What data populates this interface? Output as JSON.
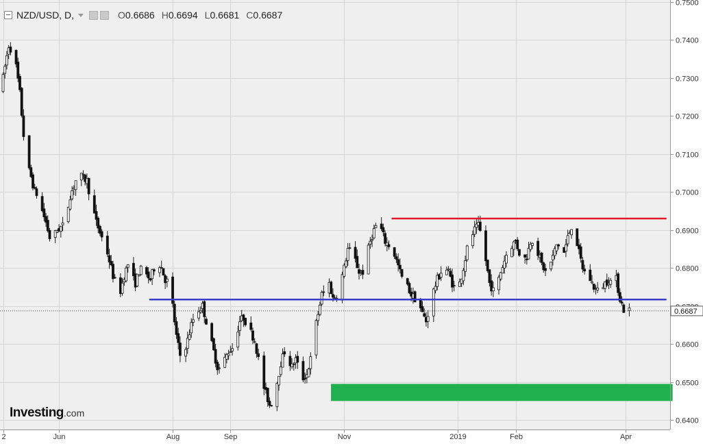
{
  "header": {
    "symbol": "NZD/USD, D,",
    "open_label": "O",
    "open": "0.6686",
    "high_label": "H",
    "high": "0.6694",
    "low_label": "L",
    "low": "0.6681",
    "close_label": "C",
    "close": "0.6687"
  },
  "logo": {
    "main": "Investing",
    "suffix": ".com"
  },
  "chart_data": {
    "type": "candlestick",
    "title": "NZD/USD, D,",
    "ylim": [
      0.6375,
      0.7505
    ],
    "y_ticks": [
      "0.6400",
      "0.6500",
      "0.6600",
      "0.6700",
      "0.6800",
      "0.6900",
      "0.7000",
      "0.7100",
      "0.7200",
      "0.7300",
      "0.7400",
      "0.7500"
    ],
    "x_ticks": [
      {
        "label": "2",
        "day": 0.6
      },
      {
        "label": "Jun",
        "day": 30.6
      },
      {
        "label": "Aug",
        "day": 91.6
      },
      {
        "label": "Sep",
        "day": 122.6
      },
      {
        "label": "Nov",
        "day": 183.6
      },
      {
        "label": "2019",
        "day": 244.6
      },
      {
        "label": "Feb",
        "day": 275.6
      },
      {
        "label": "Apr",
        "day": 334.6
      }
    ],
    "x_range": [
      0,
      356.5
    ],
    "last_price": "0.6687",
    "price_path": [
      [
        0,
        0.727
      ],
      [
        2,
        0.733
      ],
      [
        4,
        0.7385
      ],
      [
        6,
        0.737
      ],
      [
        8,
        0.733
      ],
      [
        10,
        0.726
      ],
      [
        12,
        0.715
      ],
      [
        14,
        0.707
      ],
      [
        16,
        0.704
      ],
      [
        18,
        0.7
      ],
      [
        20,
        0.699
      ],
      [
        22,
        0.695
      ],
      [
        24,
        0.692
      ],
      [
        26,
        0.688
      ],
      [
        28,
        0.688
      ],
      [
        30,
        0.69
      ],
      [
        33,
        0.691
      ],
      [
        35,
        0.694
      ],
      [
        37,
        0.699
      ],
      [
        40,
        0.703
      ],
      [
        43,
        0.704
      ],
      [
        46,
        0.703
      ],
      [
        48,
        0.698
      ],
      [
        51,
        0.692
      ],
      [
        54,
        0.688
      ],
      [
        56,
        0.686
      ],
      [
        58,
        0.682
      ],
      [
        60,
        0.678
      ],
      [
        62,
        0.675
      ],
      [
        64,
        0.674
      ],
      [
        66,
        0.678
      ],
      [
        68,
        0.681
      ],
      [
        70,
        0.678
      ],
      [
        72,
        0.676
      ],
      [
        74,
        0.679
      ],
      [
        76,
        0.68
      ],
      [
        78,
        0.678
      ],
      [
        80,
        0.677
      ],
      [
        82,
        0.68
      ],
      [
        84,
        0.682
      ],
      [
        86,
        0.68
      ],
      [
        88,
        0.677
      ],
      [
        90,
        0.676
      ],
      [
        92,
        0.67
      ],
      [
        94,
        0.662
      ],
      [
        96,
        0.657
      ],
      [
        98,
        0.658
      ],
      [
        100,
        0.661
      ],
      [
        102,
        0.665
      ],
      [
        104,
        0.668
      ],
      [
        106,
        0.669
      ],
      [
        108,
        0.67
      ],
      [
        110,
        0.666
      ],
      [
        112,
        0.662
      ],
      [
        114,
        0.658
      ],
      [
        116,
        0.654
      ],
      [
        118,
        0.653
      ],
      [
        120,
        0.656
      ],
      [
        122,
        0.658
      ],
      [
        124,
        0.659
      ],
      [
        126,
        0.662
      ],
      [
        128,
        0.666
      ],
      [
        130,
        0.667
      ],
      [
        132,
        0.665
      ],
      [
        134,
        0.663
      ],
      [
        136,
        0.661
      ],
      [
        138,
        0.656
      ],
      [
        140,
        0.65
      ],
      [
        142,
        0.647
      ],
      [
        144,
        0.644
      ],
      [
        146,
        0.645
      ],
      [
        148,
        0.65
      ],
      [
        150,
        0.655
      ],
      [
        152,
        0.658
      ],
      [
        154,
        0.656
      ],
      [
        156,
        0.654
      ],
      [
        158,
        0.656
      ],
      [
        160,
        0.653
      ],
      [
        162,
        0.651
      ],
      [
        164,
        0.652
      ],
      [
        166,
        0.656
      ],
      [
        168,
        0.663
      ],
      [
        170,
        0.668
      ],
      [
        172,
        0.673
      ],
      [
        174,
        0.674
      ],
      [
        176,
        0.676
      ],
      [
        178,
        0.672
      ],
      [
        180,
        0.673
      ],
      [
        182,
        0.676
      ],
      [
        184,
        0.68
      ],
      [
        186,
        0.685
      ],
      [
        188,
        0.684
      ],
      [
        190,
        0.682
      ],
      [
        192,
        0.679
      ],
      [
        194,
        0.679
      ],
      [
        196,
        0.683
      ],
      [
        198,
        0.687
      ],
      [
        200,
        0.69
      ],
      [
        202,
        0.692
      ],
      [
        204,
        0.69
      ],
      [
        206,
        0.687
      ],
      [
        208,
        0.686
      ],
      [
        210,
        0.685
      ],
      [
        212,
        0.682
      ],
      [
        214,
        0.679
      ],
      [
        216,
        0.676
      ],
      [
        218,
        0.675
      ],
      [
        220,
        0.673
      ],
      [
        222,
        0.672
      ],
      [
        224,
        0.671
      ],
      [
        226,
        0.668
      ],
      [
        228,
        0.666
      ],
      [
        230,
        0.67
      ],
      [
        232,
        0.674
      ],
      [
        234,
        0.677
      ],
      [
        236,
        0.679
      ],
      [
        238,
        0.68
      ],
      [
        240,
        0.679
      ],
      [
        242,
        0.676
      ],
      [
        244,
        0.674
      ],
      [
        246,
        0.676
      ],
      [
        248,
        0.68
      ],
      [
        250,
        0.685
      ],
      [
        252,
        0.688
      ],
      [
        254,
        0.69
      ],
      [
        256,
        0.691
      ],
      [
        258,
        0.688
      ],
      [
        260,
        0.682
      ],
      [
        262,
        0.676
      ],
      [
        264,
        0.674
      ],
      [
        266,
        0.675
      ],
      [
        268,
        0.679
      ],
      [
        270,
        0.682
      ],
      [
        272,
        0.685
      ],
      [
        274,
        0.686
      ],
      [
        276,
        0.687
      ],
      [
        278,
        0.684
      ],
      [
        280,
        0.682
      ],
      [
        282,
        0.683
      ],
      [
        284,
        0.687
      ],
      [
        286,
        0.688
      ],
      [
        288,
        0.684
      ],
      [
        290,
        0.681
      ],
      [
        292,
        0.679
      ],
      [
        294,
        0.68
      ],
      [
        296,
        0.683
      ],
      [
        298,
        0.686
      ],
      [
        300,
        0.686
      ],
      [
        302,
        0.684
      ],
      [
        304,
        0.688
      ],
      [
        306,
        0.691
      ],
      [
        308,
        0.689
      ],
      [
        310,
        0.684
      ],
      [
        312,
        0.68
      ],
      [
        314,
        0.678
      ],
      [
        316,
        0.677
      ],
      [
        318,
        0.675
      ],
      [
        320,
        0.674
      ],
      [
        322,
        0.675
      ],
      [
        324,
        0.676
      ],
      [
        326,
        0.677
      ],
      [
        328,
        0.676
      ],
      [
        330,
        0.677
      ],
      [
        332,
        0.672
      ],
      [
        334,
        0.669
      ],
      [
        336,
        0.669
      ]
    ],
    "resistance_line": {
      "price": 0.693,
      "x_from": 209,
      "x_to": 356.5,
      "color": "#e0192a"
    },
    "support_line": {
      "price": 0.6717,
      "x_from": 79,
      "x_to": 356.5,
      "color": "#3a3dc8"
    },
    "demand_zone": {
      "price_top": 0.6495,
      "price_bottom": 0.645,
      "x_from": 176.5,
      "x_to": 359.8,
      "color": "#21b04e"
    }
  }
}
